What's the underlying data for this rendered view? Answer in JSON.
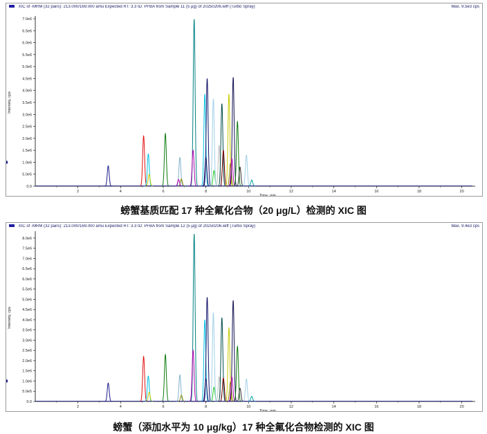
{
  "colors": {
    "peaks": [
      "#1a1a8c",
      "#e01010",
      "#00c0e0",
      "#c8c800",
      "#0a7a0a",
      "#80b0c8",
      "#8a8a00",
      "#b000b0",
      "#008080",
      "#10106a",
      "#28c828",
      "#a0d0e8",
      "#c0c0c0",
      "#004a4a",
      "#7a0000",
      "#101050",
      "#303030",
      "#606000",
      "#4040ff",
      "#00a0a0",
      "#d09060"
    ]
  },
  "chart_data": [
    {
      "type": "line",
      "header": {
        "left": "XIC of -MRM (32 pairs): 213.000/169.000 amu Expected RT: 3.3 ID: PFBA from Sample 11 (5 μg) of 20250206.wiff (Turbo Spray)",
        "right": "Max. 9.5e3 cps"
      },
      "xlabel": "Time, min",
      "ylabel": "Intensity, cps",
      "xlim": [
        0,
        20.5
      ],
      "ylim": [
        0,
        7000000
      ],
      "x_ticks": [
        "2",
        "4",
        "6",
        "8",
        "10",
        "12",
        "14",
        "16",
        "18",
        "20"
      ],
      "y_ticks": [
        "0.0",
        "5.0e5",
        "1.0e6",
        "1.5e6",
        "2.0e6",
        "2.5e6",
        "3.0e6",
        "3.5e6",
        "4.0e6",
        "4.5e6",
        "5.0e6",
        "5.5e6",
        "6.0e6",
        "6.5e6",
        "7.0e6"
      ],
      "y_marker": "1.0",
      "peaks": [
        {
          "rt": 3.42,
          "height": 850000,
          "color": 0
        },
        {
          "rt": 5.08,
          "height": 2100000,
          "color": 1
        },
        {
          "rt": 5.3,
          "height": 1350000,
          "color": 2
        },
        {
          "rt": 5.34,
          "height": 500000,
          "color": 3
        },
        {
          "rt": 6.1,
          "height": 2200000,
          "color": 4
        },
        {
          "rt": 6.78,
          "height": 1200000,
          "color": 5
        },
        {
          "rt": 6.85,
          "height": 300000,
          "color": 6
        },
        {
          "rt": 6.72,
          "height": 280000,
          "color": 7
        },
        {
          "rt": 7.45,
          "height": 6980000,
          "color": 8
        },
        {
          "rt": 7.4,
          "height": 1500000,
          "color": 7
        },
        {
          "rt": 7.95,
          "height": 3850000,
          "color": 2
        },
        {
          "rt": 8.06,
          "height": 4500000,
          "color": 9
        },
        {
          "rt": 8.0,
          "height": 1200000,
          "color": 9
        },
        {
          "rt": 8.38,
          "height": 650000,
          "color": 10
        },
        {
          "rt": 8.35,
          "height": 3650000,
          "color": 11
        },
        {
          "rt": 8.62,
          "height": 1700000,
          "color": 12
        },
        {
          "rt": 8.75,
          "height": 3450000,
          "color": 13
        },
        {
          "rt": 8.82,
          "height": 1500000,
          "color": 14
        },
        {
          "rt": 9.08,
          "height": 3850000,
          "color": 3
        },
        {
          "rt": 9.15,
          "height": 950000,
          "color": 6
        },
        {
          "rt": 9.28,
          "height": 4550000,
          "color": 15
        },
        {
          "rt": 9.22,
          "height": 1150000,
          "color": 7
        },
        {
          "rt": 9.48,
          "height": 2700000,
          "color": 4
        },
        {
          "rt": 9.6,
          "height": 800000,
          "color": 16
        },
        {
          "rt": 9.9,
          "height": 1300000,
          "color": 11
        },
        {
          "rt": 10.15,
          "height": 260000,
          "color": 19
        }
      ]
    },
    {
      "type": "line",
      "header": {
        "left": "XIC of -MRM (32 pairs): 213.000/169.000 amu Expected RT: 3.3 ID: PFBA from Sample 12 (5 μg) of 20250206.wiff (Turbo Spray)",
        "right": "Max. 9.4e3 cps"
      },
      "xlabel": "Time, min",
      "ylabel": "Intensity, cps",
      "xlim": [
        0,
        20.5
      ],
      "ylim": [
        0,
        8200000
      ],
      "x_ticks": [
        "2",
        "4",
        "6",
        "8",
        "10",
        "12",
        "14",
        "16",
        "18",
        "20"
      ],
      "y_ticks": [
        "0.0",
        "5.0e5",
        "1.0e6",
        "1.5e6",
        "2.0e6",
        "2.5e6",
        "3.0e6",
        "3.5e6",
        "4.0e6",
        "4.5e6",
        "5.0e6",
        "5.5e6",
        "6.0e6",
        "6.5e6",
        "7.0e6",
        "7.5e6",
        "8.0e6"
      ],
      "y_marker": "1.4",
      "peaks": [
        {
          "rt": 3.42,
          "height": 900000,
          "color": 0
        },
        {
          "rt": 5.08,
          "height": 2200000,
          "color": 1
        },
        {
          "rt": 5.3,
          "height": 1250000,
          "color": 2
        },
        {
          "rt": 5.34,
          "height": 450000,
          "color": 3
        },
        {
          "rt": 6.1,
          "height": 2300000,
          "color": 4
        },
        {
          "rt": 6.78,
          "height": 1300000,
          "color": 5
        },
        {
          "rt": 6.85,
          "height": 300000,
          "color": 6
        },
        {
          "rt": 7.45,
          "height": 8200000,
          "color": 8
        },
        {
          "rt": 7.4,
          "height": 2500000,
          "color": 7
        },
        {
          "rt": 7.95,
          "height": 4000000,
          "color": 2
        },
        {
          "rt": 8.06,
          "height": 5100000,
          "color": 9
        },
        {
          "rt": 8.0,
          "height": 1100000,
          "color": 9
        },
        {
          "rt": 8.38,
          "height": 700000,
          "color": 10
        },
        {
          "rt": 8.35,
          "height": 4350000,
          "color": 11
        },
        {
          "rt": 8.62,
          "height": 1200000,
          "color": 12
        },
        {
          "rt": 8.75,
          "height": 4100000,
          "color": 13
        },
        {
          "rt": 8.82,
          "height": 1150000,
          "color": 14
        },
        {
          "rt": 9.08,
          "height": 3600000,
          "color": 3
        },
        {
          "rt": 9.15,
          "height": 950000,
          "color": 6
        },
        {
          "rt": 9.28,
          "height": 4950000,
          "color": 15
        },
        {
          "rt": 9.22,
          "height": 1200000,
          "color": 7
        },
        {
          "rt": 9.48,
          "height": 2700000,
          "color": 4
        },
        {
          "rt": 9.6,
          "height": 650000,
          "color": 16
        },
        {
          "rt": 9.9,
          "height": 1100000,
          "color": 11
        },
        {
          "rt": 10.15,
          "height": 250000,
          "color": 19
        }
      ]
    }
  ],
  "captions": {
    "first": "螃蟹基质匹配 17 种全氟化合物（20 μg/L）检测的 XIC 图",
    "second": "螃蟹（添加水平为 10 μg/kg）17 种全氟化合物检测的 XIC 图"
  }
}
